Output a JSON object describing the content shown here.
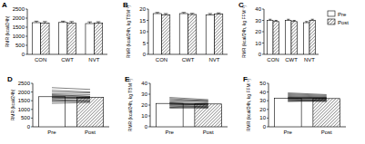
{
  "chart_data": [
    {
      "type": "bar",
      "title": "A",
      "ylabel": "RMR (kcal/24h)",
      "categories": [
        "CON",
        "CWT",
        "NVT"
      ],
      "series": [
        {
          "name": "Pre",
          "color": "#ffffff",
          "values": [
            1750,
            1760,
            1700
          ],
          "errors": [
            80,
            70,
            90
          ]
        },
        {
          "name": "Post",
          "color": "#ffffff",
          "values": [
            1720,
            1730,
            1720
          ],
          "errors": [
            90,
            80,
            80
          ]
        }
      ],
      "ylim": [
        0,
        2500
      ],
      "yticks": [
        0,
        500,
        1000,
        1500,
        2000,
        2500
      ]
    },
    {
      "type": "bar",
      "title": "B",
      "ylabel": "RMR (kcal/24h, kg TBM⁻¹)",
      "categories": [
        "CON",
        "CWT",
        "NVT"
      ],
      "series": [
        {
          "name": "Pre",
          "color": "#ffffff",
          "values": [
            18.0,
            18.0,
            17.4
          ],
          "errors": [
            0.5,
            0.5,
            0.6
          ]
        },
        {
          "name": "Post",
          "color": "#ffffff",
          "values": [
            17.5,
            17.6,
            17.8
          ],
          "errors": [
            0.5,
            0.5,
            0.5
          ]
        }
      ],
      "ylim": [
        0,
        20
      ],
      "yticks": [
        0,
        5,
        10,
        15,
        20
      ]
    },
    {
      "type": "bar",
      "title": "C",
      "ylabel": "RMR (kcal/24h, kg FFM⁻¹)",
      "categories": [
        "CON",
        "CWT",
        "NVT"
      ],
      "series": [
        {
          "name": "Pre",
          "color": "#ffffff",
          "values": [
            30,
            30,
            28
          ],
          "errors": [
            1,
            1,
            1
          ]
        },
        {
          "name": "Post",
          "color": "#ffffff",
          "values": [
            29,
            29,
            30
          ],
          "errors": [
            1,
            1,
            1
          ]
        }
      ],
      "ylim": [
        0,
        40
      ],
      "yticks": [
        0,
        10,
        20,
        30,
        40
      ],
      "legend": "right"
    },
    {
      "type": "bar",
      "title": "D",
      "ylabel": "RMR (kcal/24h)",
      "categories": [
        "Pre",
        "Post"
      ],
      "values": [
        1730,
        1700
      ],
      "colors": [
        "#ffffff",
        "#ffffff"
      ],
      "subjects": [
        [
          1650,
          1600
        ],
        [
          1800,
          1750
        ],
        [
          2100,
          2000
        ],
        [
          1450,
          1500
        ],
        [
          1900,
          1850
        ],
        [
          1700,
          1650
        ],
        [
          2250,
          2150
        ],
        [
          1550,
          1500
        ],
        [
          1350,
          1400
        ],
        [
          1750,
          1700
        ],
        [
          2000,
          1950
        ],
        [
          1600,
          1650
        ],
        [
          1850,
          1750
        ],
        [
          1500,
          1450
        ],
        [
          1700,
          1680
        ]
      ],
      "ylim": [
        0,
        2500
      ],
      "yticks": [
        0,
        500,
        1000,
        1500,
        2000,
        2500
      ]
    },
    {
      "type": "bar",
      "title": "E",
      "ylabel": "RMR (kcal/24h, kg TBM⁻¹)",
      "categories": [
        "Pre",
        "Post"
      ],
      "values": [
        21.5,
        21
      ],
      "colors": [
        "#ffffff",
        "#ffffff"
      ],
      "subjects": [
        [
          20,
          19
        ],
        [
          22,
          21
        ],
        [
          25,
          23
        ],
        [
          18,
          19
        ],
        [
          24,
          24
        ],
        [
          21,
          20
        ],
        [
          27,
          25
        ],
        [
          19,
          18
        ],
        [
          17,
          18
        ],
        [
          23,
          22
        ],
        [
          26,
          24
        ],
        [
          20,
          21
        ],
        [
          22,
          20
        ],
        [
          18,
          17
        ],
        [
          21,
          21
        ]
      ],
      "ylim": [
        0,
        40
      ],
      "yticks": [
        0,
        10,
        20,
        30,
        40
      ]
    },
    {
      "type": "bar",
      "title": "F",
      "ylabel": "RMR (kcal/24h, kg FFM⁻¹)",
      "categories": [
        "Pre",
        "Post"
      ],
      "values": [
        33,
        32.5
      ],
      "colors": [
        "#ffffff",
        "#ffffff"
      ],
      "subjects": [
        [
          32,
          31
        ],
        [
          35,
          33
        ],
        [
          38,
          36
        ],
        [
          30,
          31
        ],
        [
          34,
          34
        ],
        [
          33,
          32
        ],
        [
          37,
          35
        ],
        [
          31,
          30
        ],
        [
          29,
          30
        ],
        [
          36,
          34
        ],
        [
          39,
          37
        ],
        [
          32,
          33
        ],
        [
          34,
          32
        ],
        [
          30,
          29
        ],
        [
          33,
          33
        ]
      ],
      "ylim": [
        0,
        50
      ],
      "yticks": [
        0,
        10,
        20,
        30,
        40,
        50
      ]
    }
  ]
}
